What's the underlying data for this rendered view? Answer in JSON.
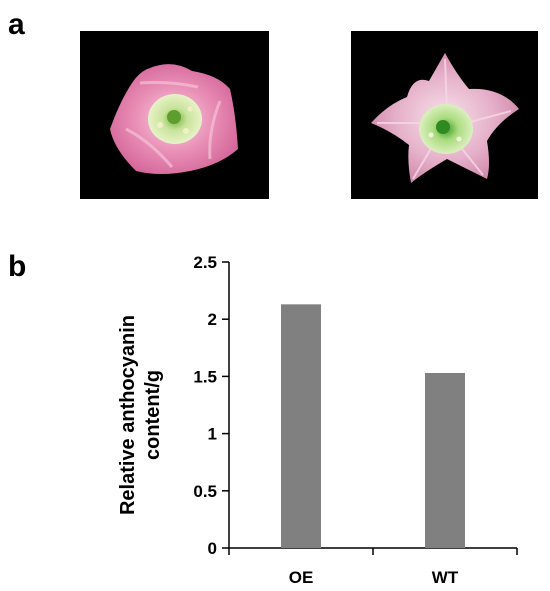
{
  "panels": {
    "a_label": "a",
    "b_label": "b"
  },
  "photos": [
    {
      "subject": "flower-photo-oe",
      "background": "#000000",
      "petal_color": "#e48bb2",
      "petal_edge": "#f4bfd5",
      "center_color": "#cfe7a0"
    },
    {
      "subject": "flower-photo-wt",
      "background": "#000000",
      "petal_color": "#e2a9c4",
      "petal_edge": "#f6d6e4",
      "center_color": "#bde39a"
    }
  ],
  "chart_data": {
    "type": "bar",
    "categories": [
      "OE",
      "WT"
    ],
    "values": [
      2.13,
      1.53
    ],
    "title": "",
    "xlabel": "",
    "ylabel_lines": [
      "Relative anthocyanin",
      "content/g"
    ],
    "ylim": [
      0,
      2.5
    ],
    "yticks": [
      "0",
      "0.5",
      "1",
      "1.5",
      "2",
      "2.5"
    ],
    "bar_color": "#808080",
    "grid": false,
    "legend": "none"
  }
}
